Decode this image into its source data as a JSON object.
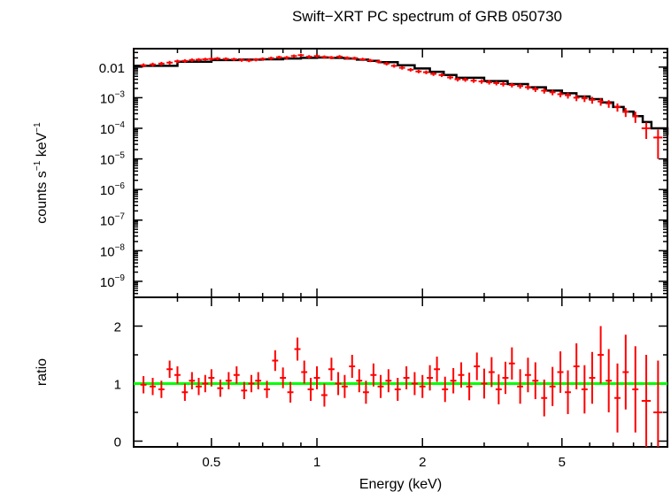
{
  "title": "Swift−XRT PC spectrum of GRB 050730",
  "chart_data": [
    {
      "type": "scatter",
      "panel": "spectrum",
      "xlabel": "Energy (keV)",
      "ylabel": {
        "base": "counts s",
        "exp1": "−1",
        "mid": " keV",
        "exp2": "−1"
      },
      "xscale": "log",
      "yscale": "log",
      "xlim": [
        0.3,
        10
      ],
      "ylim": [
        3e-10,
        0.04
      ],
      "yticks": [
        {
          "value": 0.01,
          "label": "0.01"
        },
        {
          "value": 0.001,
          "base": "10",
          "exp": "−3"
        },
        {
          "value": 0.0001,
          "base": "10",
          "exp": "−4"
        },
        {
          "value": 1e-05,
          "base": "10",
          "exp": "−5"
        },
        {
          "value": 1e-06,
          "base": "10",
          "exp": "−6"
        },
        {
          "value": 1e-07,
          "base": "10",
          "exp": "−7"
        },
        {
          "value": 1e-08,
          "base": "10",
          "exp": "−8"
        },
        {
          "value": 1e-09,
          "base": "10",
          "exp": "−9"
        }
      ],
      "series": [
        {
          "style": "data points with error bars",
          "color": "#ff0000",
          "points": [
            [
              0.32,
              0.0115,
              0.02,
              0.15
            ],
            [
              0.34,
              0.0122,
              0.02,
              0.14
            ],
            [
              0.36,
              0.013,
              0.02,
              0.14
            ],
            [
              0.38,
              0.014,
              0.02,
              0.14
            ],
            [
              0.4,
              0.0155,
              0.02,
              0.13
            ],
            [
              0.42,
              0.016,
              0.02,
              0.13
            ],
            [
              0.44,
              0.017,
              0.02,
              0.13
            ],
            [
              0.46,
              0.0175,
              0.02,
              0.12
            ],
            [
              0.48,
              0.018,
              0.02,
              0.12
            ],
            [
              0.5,
              0.0185,
              0.02,
              0.12
            ],
            [
              0.52,
              0.019,
              0.02,
              0.12
            ],
            [
              0.55,
              0.0185,
              0.02,
              0.12
            ],
            [
              0.58,
              0.018,
              0.02,
              0.12
            ],
            [
              0.61,
              0.017,
              0.02,
              0.12
            ],
            [
              0.64,
              0.0165,
              0.02,
              0.12
            ],
            [
              0.67,
              0.0175,
              0.02,
              0.12
            ],
            [
              0.7,
              0.0185,
              0.02,
              0.12
            ],
            [
              0.74,
              0.0195,
              0.02,
              0.12
            ],
            [
              0.78,
              0.021,
              0.02,
              0.12
            ],
            [
              0.82,
              0.0205,
              0.02,
              0.12
            ],
            [
              0.86,
              0.023,
              0.02,
              0.12
            ],
            [
              0.9,
              0.0245,
              0.02,
              0.12
            ],
            [
              0.95,
              0.022,
              0.02,
              0.12
            ],
            [
              1.0,
              0.023,
              0.02,
              0.12
            ],
            [
              1.05,
              0.0215,
              0.02,
              0.12
            ],
            [
              1.1,
              0.0205,
              0.02,
              0.12
            ],
            [
              1.16,
              0.022,
              0.02,
              0.12
            ],
            [
              1.22,
              0.02,
              0.02,
              0.12
            ],
            [
              1.28,
              0.0195,
              0.02,
              0.12
            ],
            [
              1.35,
              0.018,
              0.02,
              0.12
            ],
            [
              1.42,
              0.0165,
              0.02,
              0.12
            ],
            [
              1.5,
              0.015,
              0.02,
              0.12
            ],
            [
              1.58,
              0.013,
              0.02,
              0.13
            ],
            [
              1.66,
              0.011,
              0.02,
              0.13
            ],
            [
              1.75,
              0.0095,
              0.02,
              0.13
            ],
            [
              1.85,
              0.0082,
              0.02,
              0.13
            ],
            [
              1.95,
              0.0072,
              0.02,
              0.13
            ],
            [
              2.05,
              0.0068,
              0.02,
              0.14
            ],
            [
              2.15,
              0.006,
              0.02,
              0.14
            ],
            [
              2.27,
              0.0055,
              0.02,
              0.14
            ],
            [
              2.4,
              0.0046,
              0.02,
              0.14
            ],
            [
              2.52,
              0.004,
              0.02,
              0.15
            ],
            [
              2.65,
              0.0039,
              0.02,
              0.15
            ],
            [
              2.8,
              0.0036,
              0.02,
              0.15
            ],
            [
              2.95,
              0.0034,
              0.02,
              0.16
            ],
            [
              3.1,
              0.0032,
              0.02,
              0.16
            ],
            [
              3.25,
              0.003,
              0.02,
              0.16
            ],
            [
              3.4,
              0.0028,
              0.02,
              0.17
            ],
            [
              3.6,
              0.0026,
              0.02,
              0.17
            ],
            [
              3.8,
              0.0024,
              0.02,
              0.18
            ],
            [
              4.0,
              0.0022,
              0.02,
              0.18
            ],
            [
              4.2,
              0.0019,
              0.02,
              0.19
            ],
            [
              4.45,
              0.0017,
              0.02,
              0.2
            ],
            [
              4.7,
              0.0015,
              0.02,
              0.2
            ],
            [
              4.95,
              0.0013,
              0.02,
              0.21
            ],
            [
              5.2,
              0.0012,
              0.02,
              0.22
            ],
            [
              5.5,
              0.001,
              0.02,
              0.23
            ],
            [
              5.8,
              0.00095,
              0.02,
              0.24
            ],
            [
              6.1,
              0.00085,
              0.02,
              0.25
            ],
            [
              6.45,
              0.00075,
              0.02,
              0.27
            ],
            [
              6.8,
              0.00065,
              0.02,
              0.28
            ],
            [
              7.2,
              0.0005,
              0.02,
              0.3
            ],
            [
              7.6,
              0.00035,
              0.02,
              0.33
            ],
            [
              8.1,
              0.00025,
              0.02,
              0.4
            ],
            [
              8.7,
              0.0001,
              0.03,
              0.55
            ],
            [
              9.4,
              5e-05,
              0.03,
              0.8
            ]
          ]
        },
        {
          "style": "model step line",
          "color": "#000000",
          "points": [
            [
              0.3,
              0.011
            ],
            [
              0.4,
              0.015
            ],
            [
              0.5,
              0.017
            ],
            [
              0.6,
              0.0175
            ],
            [
              0.7,
              0.018
            ],
            [
              0.8,
              0.019
            ],
            [
              0.9,
              0.02
            ],
            [
              1.0,
              0.0205
            ],
            [
              1.1,
              0.02
            ],
            [
              1.2,
              0.019
            ],
            [
              1.3,
              0.0175
            ],
            [
              1.4,
              0.016
            ],
            [
              1.5,
              0.0145
            ],
            [
              1.7,
              0.0115
            ],
            [
              1.9,
              0.009
            ],
            [
              2.1,
              0.007
            ],
            [
              2.3,
              0.0055
            ],
            [
              2.5,
              0.0045
            ],
            [
              3.0,
              0.0035
            ],
            [
              3.5,
              0.0028
            ],
            [
              4.0,
              0.0022
            ],
            [
              4.5,
              0.0017
            ],
            [
              5.0,
              0.0014
            ],
            [
              5.5,
              0.0011
            ],
            [
              6.0,
              0.0009
            ],
            [
              6.5,
              0.0007
            ],
            [
              7.0,
              0.0005
            ],
            [
              7.5,
              0.00035
            ],
            [
              8.0,
              0.00025
            ],
            [
              8.5,
              0.00016
            ],
            [
              9.0,
              0.0001
            ],
            [
              10.0,
              6e-05
            ]
          ]
        }
      ]
    },
    {
      "type": "scatter",
      "panel": "ratio",
      "xlabel": "Energy (keV)",
      "ylabel": "ratio",
      "xscale": "log",
      "xlim": [
        0.3,
        10
      ],
      "ylim": [
        -0.1,
        2.5
      ],
      "yticks": [
        0,
        1,
        2
      ],
      "xticks": [
        {
          "value": 0.5,
          "label": "0.5"
        },
        {
          "value": 1,
          "label": "1"
        },
        {
          "value": 2,
          "label": "2"
        },
        {
          "value": 5,
          "label": "5"
        }
      ],
      "reference_line": {
        "value": 1,
        "color": "#00ff00"
      },
      "series": [
        {
          "style": "data points with error bars",
          "color": "#ff0000",
          "points": [
            [
              0.32,
              0.98,
              0.02,
              0.15
            ],
            [
              0.34,
              0.95,
              0.02,
              0.15
            ],
            [
              0.36,
              0.9,
              0.02,
              0.15
            ],
            [
              0.38,
              1.25,
              0.02,
              0.15
            ],
            [
              0.4,
              1.15,
              0.02,
              0.15
            ],
            [
              0.42,
              0.85,
              0.02,
              0.15
            ],
            [
              0.44,
              1.05,
              0.02,
              0.15
            ],
            [
              0.46,
              0.95,
              0.02,
              0.15
            ],
            [
              0.48,
              1.0,
              0.02,
              0.15
            ],
            [
              0.5,
              1.1,
              0.02,
              0.15
            ],
            [
              0.53,
              0.92,
              0.02,
              0.15
            ],
            [
              0.56,
              1.05,
              0.02,
              0.15
            ],
            [
              0.59,
              1.15,
              0.02,
              0.15
            ],
            [
              0.62,
              0.88,
              0.02,
              0.15
            ],
            [
              0.65,
              1.0,
              0.02,
              0.15
            ],
            [
              0.68,
              1.05,
              0.02,
              0.15
            ],
            [
              0.72,
              0.9,
              0.02,
              0.15
            ],
            [
              0.76,
              1.4,
              0.02,
              0.18
            ],
            [
              0.8,
              1.1,
              0.02,
              0.18
            ],
            [
              0.84,
              0.85,
              0.02,
              0.18
            ],
            [
              0.88,
              1.6,
              0.02,
              0.2
            ],
            [
              0.92,
              1.2,
              0.02,
              0.2
            ],
            [
              0.96,
              0.9,
              0.02,
              0.2
            ],
            [
              1.0,
              1.1,
              0.02,
              0.2
            ],
            [
              1.05,
              0.8,
              0.02,
              0.2
            ],
            [
              1.1,
              1.25,
              0.02,
              0.2
            ],
            [
              1.15,
              1.0,
              0.02,
              0.2
            ],
            [
              1.2,
              0.95,
              0.02,
              0.2
            ],
            [
              1.26,
              1.3,
              0.02,
              0.2
            ],
            [
              1.32,
              1.05,
              0.02,
              0.2
            ],
            [
              1.38,
              0.85,
              0.02,
              0.2
            ],
            [
              1.45,
              1.15,
              0.02,
              0.2
            ],
            [
              1.52,
              0.95,
              0.02,
              0.2
            ],
            [
              1.6,
              1.05,
              0.02,
              0.2
            ],
            [
              1.7,
              0.9,
              0.02,
              0.2
            ],
            [
              1.8,
              1.1,
              0.02,
              0.2
            ],
            [
              1.9,
              1.0,
              0.02,
              0.2
            ],
            [
              2.0,
              0.95,
              0.02,
              0.2
            ],
            [
              2.1,
              1.1,
              0.02,
              0.22
            ],
            [
              2.2,
              1.25,
              0.02,
              0.22
            ],
            [
              2.32,
              0.9,
              0.02,
              0.22
            ],
            [
              2.45,
              1.05,
              0.02,
              0.22
            ],
            [
              2.58,
              1.15,
              0.02,
              0.22
            ],
            [
              2.72,
              0.95,
              0.02,
              0.24
            ],
            [
              2.86,
              1.3,
              0.02,
              0.24
            ],
            [
              3.0,
              1.0,
              0.02,
              0.26
            ],
            [
              3.15,
              1.2,
              0.02,
              0.26
            ],
            [
              3.3,
              0.9,
              0.02,
              0.26
            ],
            [
              3.45,
              1.1,
              0.02,
              0.28
            ],
            [
              3.6,
              1.35,
              0.02,
              0.28
            ],
            [
              3.8,
              0.95,
              0.02,
              0.3
            ],
            [
              4.0,
              1.15,
              0.02,
              0.3
            ],
            [
              4.2,
              1.05,
              0.02,
              0.32
            ],
            [
              4.45,
              0.75,
              0.02,
              0.32
            ],
            [
              4.7,
              0.95,
              0.02,
              0.34
            ],
            [
              4.95,
              1.2,
              0.02,
              0.36
            ],
            [
              5.2,
              0.85,
              0.02,
              0.38
            ],
            [
              5.5,
              1.3,
              0.02,
              0.4
            ],
            [
              5.8,
              0.9,
              0.02,
              0.42
            ],
            [
              6.1,
              1.1,
              0.02,
              0.45
            ],
            [
              6.45,
              1.5,
              0.02,
              0.5
            ],
            [
              6.8,
              1.05,
              0.02,
              0.55
            ],
            [
              7.2,
              0.75,
              0.02,
              0.6
            ],
            [
              7.6,
              1.2,
              0.02,
              0.65
            ],
            [
              8.1,
              0.9,
              0.02,
              0.75
            ],
            [
              8.7,
              0.7,
              0.03,
              0.8
            ],
            [
              9.4,
              0.5,
              0.03,
              0.9
            ]
          ]
        }
      ]
    }
  ]
}
